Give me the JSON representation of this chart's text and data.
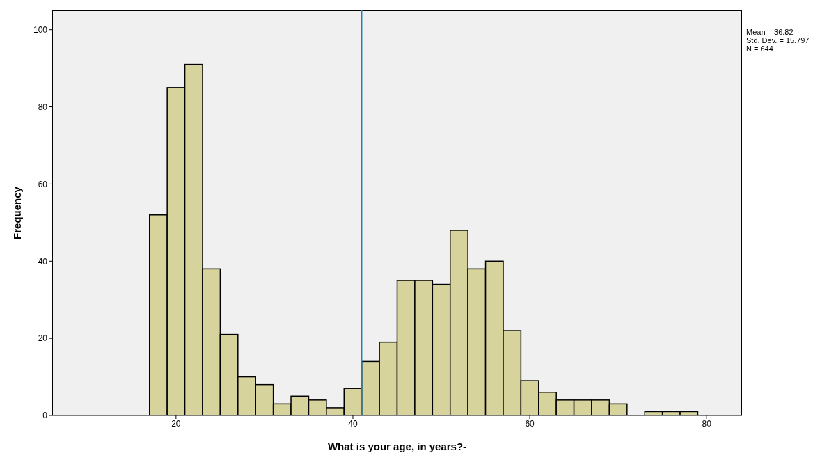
{
  "chart_data": {
    "type": "histogram",
    "xlabel": "What is your age, in years?-",
    "ylabel": "Frequency",
    "bins": [
      17,
      19,
      21,
      23,
      25,
      27,
      29,
      31,
      33,
      35,
      37,
      39,
      41,
      43,
      45,
      47,
      49,
      51,
      53,
      55,
      57,
      59,
      61,
      63,
      65,
      67,
      69,
      71,
      73,
      75,
      77,
      79
    ],
    "values": [
      52,
      85,
      91,
      38,
      21,
      10,
      8,
      3,
      5,
      4,
      2,
      7,
      14,
      19,
      35,
      35,
      34,
      48,
      38,
      40,
      22,
      9,
      6,
      4,
      4,
      4,
      3,
      0,
      1,
      1,
      1
    ],
    "color": "#d6d39c",
    "xlim": [
      6,
      84
    ],
    "xticks": [
      20,
      40,
      60,
      80
    ],
    "ylim": [
      0,
      105
    ],
    "yticks": [
      0,
      20,
      40,
      60,
      80,
      100
    ],
    "ref_lines": [
      {
        "axis": "x",
        "value": 41,
        "color": "#1a7fc0"
      }
    ],
    "annotations": [
      "Mean = 36.82",
      "Std. Dev. = 15.797",
      "N = 644"
    ]
  }
}
